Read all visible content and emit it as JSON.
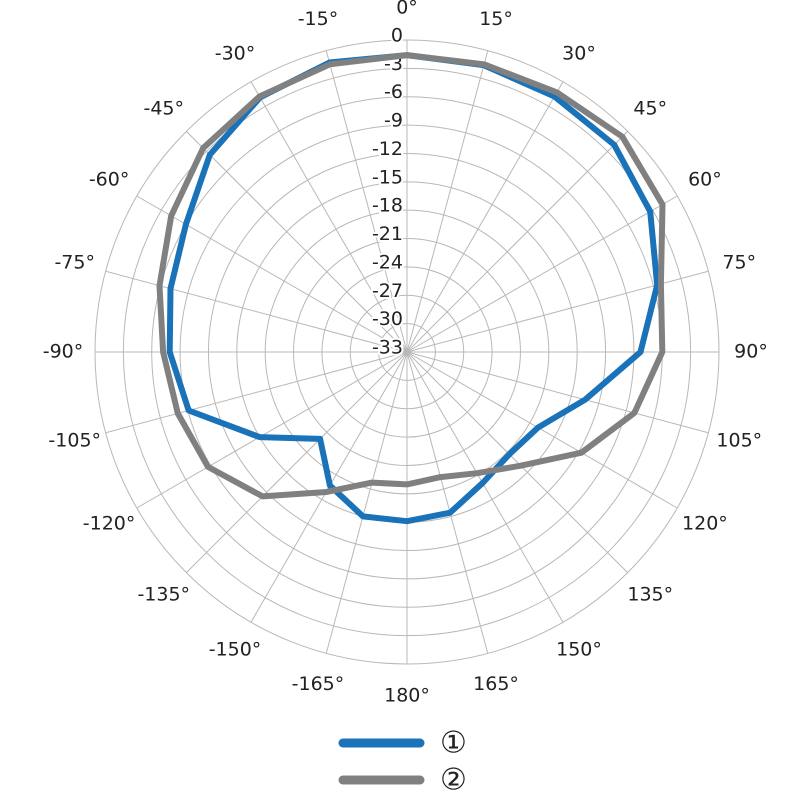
{
  "chart_data": {
    "type": "polar",
    "theta": [
      -165,
      -150,
      -135,
      -120,
      -105,
      -90,
      -75,
      -60,
      -45,
      -30,
      -15,
      0,
      15,
      30,
      45,
      60,
      75,
      90,
      105,
      120,
      135,
      150,
      165,
      180
    ],
    "series": [
      {
        "name": "①",
        "color": "#1a72b8",
        "values": [
          -15,
          -16.7,
          -20,
          -15,
          -9.1,
          -7.9,
          -7.1,
          -6,
          -3.5,
          -1.9,
          -1.3,
          -1.6,
          -1.6,
          -1.8,
          -2,
          -3.3,
          -5.6,
          -8.3,
          -13.5,
          -17,
          -17.7,
          -17,
          -15.4,
          -15.1
        ]
      },
      {
        "name": "②",
        "color": "#808080",
        "values": [
          -18.7,
          -15.9,
          -11.4,
          -8.7,
          -7.9,
          -7.2,
          -5.9,
          -4.2,
          -2.5,
          -1.8,
          -1.5,
          -1.6,
          -1.5,
          -1.3,
          -0.8,
          -1.8,
          -5.2,
          -6,
          -8.1,
          -11.7,
          -16,
          -18.2,
          -19.3,
          -19
        ]
      }
    ],
    "rlim": [
      -33,
      0
    ],
    "rticks": [
      0,
      -3,
      -6,
      -9,
      -12,
      -15,
      -18,
      -21,
      -24,
      -27,
      -30,
      -33
    ],
    "thetaticks": [
      {
        "value": 0,
        "label": "0°"
      },
      {
        "value": 15,
        "label": "15°"
      },
      {
        "value": 30,
        "label": "30°"
      },
      {
        "value": 45,
        "label": "45°"
      },
      {
        "value": 60,
        "label": "60°"
      },
      {
        "value": 75,
        "label": "75°"
      },
      {
        "value": 90,
        "label": "90°"
      },
      {
        "value": 105,
        "label": "105°"
      },
      {
        "value": 120,
        "label": "120°"
      },
      {
        "value": 135,
        "label": "135°"
      },
      {
        "value": 150,
        "label": "150°"
      },
      {
        "value": 165,
        "label": "165°"
      },
      {
        "value": 180,
        "label": "180°"
      },
      {
        "value": -165,
        "label": "-165°"
      },
      {
        "value": -150,
        "label": "-150°"
      },
      {
        "value": -135,
        "label": "-135°"
      },
      {
        "value": -120,
        "label": "-120°"
      },
      {
        "value": -105,
        "label": "-105°"
      },
      {
        "value": -90,
        "label": "-90°"
      },
      {
        "value": -75,
        "label": "-75°"
      },
      {
        "value": -60,
        "label": "-60°"
      },
      {
        "value": -45,
        "label": "-45°"
      },
      {
        "value": -30,
        "label": "-30°"
      },
      {
        "value": -15,
        "label": "-15°"
      }
    ],
    "grid": true
  }
}
